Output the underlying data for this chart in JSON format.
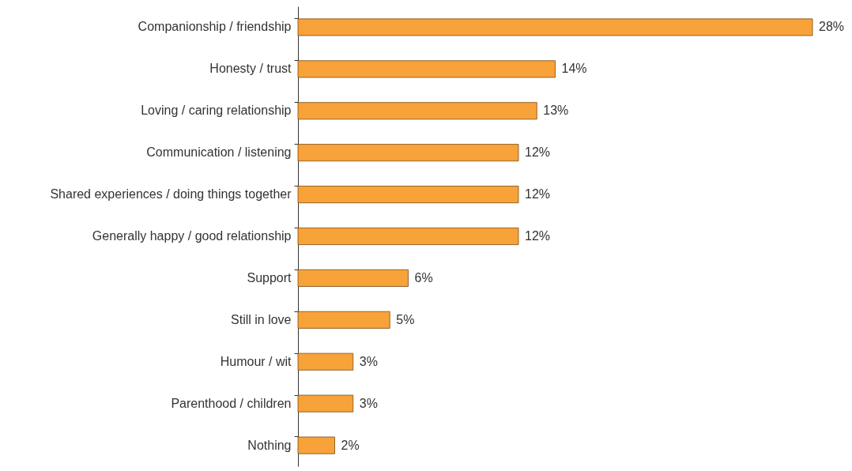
{
  "chart_data": {
    "type": "bar",
    "orientation": "horizontal",
    "categories": [
      "Companionship / friendship",
      "Honesty / trust",
      "Loving / caring relationship",
      "Communication / listening",
      "Shared experiences / doing things together",
      "Generally happy / good relationship",
      "Support",
      "Still in love",
      "Humour / wit",
      "Parenthood / children",
      "Nothing"
    ],
    "values": [
      28,
      14,
      13,
      12,
      12,
      12,
      6,
      5,
      3,
      3,
      2
    ],
    "value_labels": [
      "28%",
      "14%",
      "13%",
      "12%",
      "12%",
      "12%",
      "6%",
      "5%",
      "3%",
      "3%",
      "2%"
    ],
    "color": "#f8a23a"
  }
}
